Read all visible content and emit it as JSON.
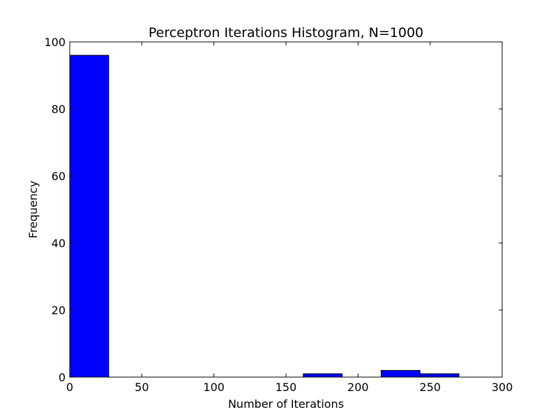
{
  "chart_data": {
    "type": "bar",
    "title": "Perceptron Iterations Histogram, N=1000",
    "xlabel": "Number of Iterations",
    "ylabel": "Frequency",
    "xlim": [
      0,
      300
    ],
    "ylim": [
      0,
      100
    ],
    "xticks": [
      "0",
      "50",
      "100",
      "150",
      "200",
      "250",
      "300"
    ],
    "yticks": [
      "0",
      "20",
      "40",
      "60",
      "80",
      "100"
    ],
    "bar_color": "#0000ff",
    "grid": false,
    "bins": [
      {
        "start": 0,
        "end": 27,
        "value": 96
      },
      {
        "start": 27,
        "end": 54,
        "value": 0
      },
      {
        "start": 54,
        "end": 81,
        "value": 0
      },
      {
        "start": 81,
        "end": 108,
        "value": 0
      },
      {
        "start": 108,
        "end": 135,
        "value": 0
      },
      {
        "start": 135,
        "end": 162,
        "value": 0
      },
      {
        "start": 162,
        "end": 189,
        "value": 1
      },
      {
        "start": 189,
        "end": 216,
        "value": 0
      },
      {
        "start": 216,
        "end": 243,
        "value": 2
      },
      {
        "start": 243,
        "end": 270,
        "value": 1
      }
    ]
  }
}
